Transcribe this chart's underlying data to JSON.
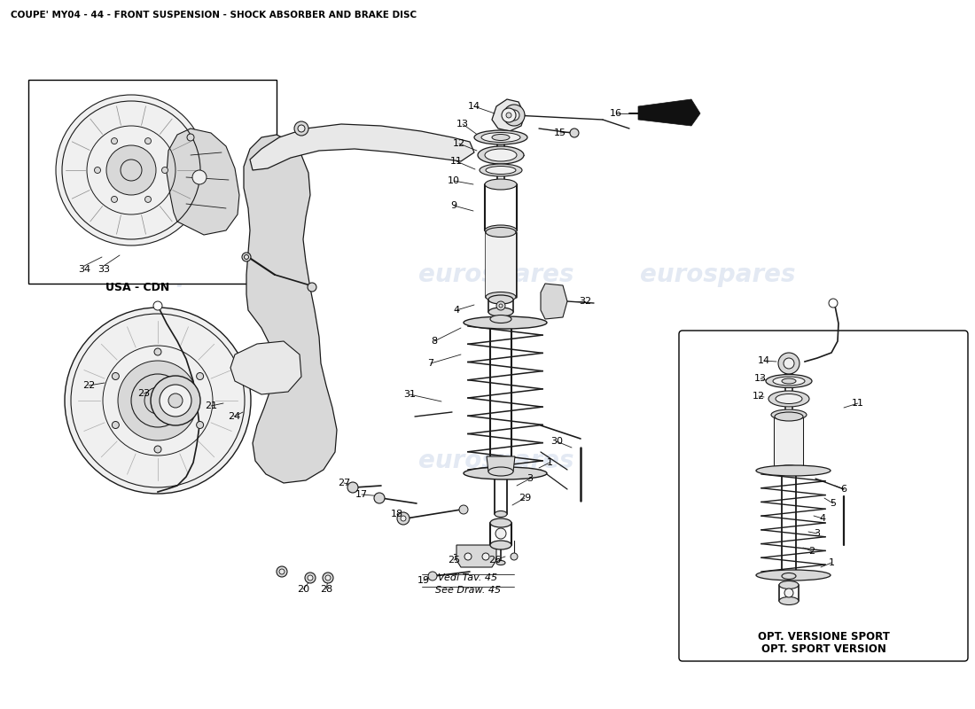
{
  "title": "COUPE' MY04 - 44 - FRONT SUSPENSION - SHOCK ABSORBER AND BRAKE DISC",
  "title_fontsize": 7.5,
  "bg_color": "#ffffff",
  "watermark_color": "#c8d4e8",
  "watermark_text": "eurospares",
  "sport_text1": "OPT. VERSIONE SPORT",
  "sport_text2": "OPT. SPORT VERSION",
  "vedi_text1": "Vedi Tav. 45",
  "vedi_text2": "See Draw. 45",
  "usa_cdn": "USA - CDN",
  "line_color": "#1a1a1a",
  "label_fontsize": 8.0,
  "part_fill": "#e8e8e8",
  "part_fill2": "#d8d8d8",
  "part_fill3": "#f0f0f0"
}
